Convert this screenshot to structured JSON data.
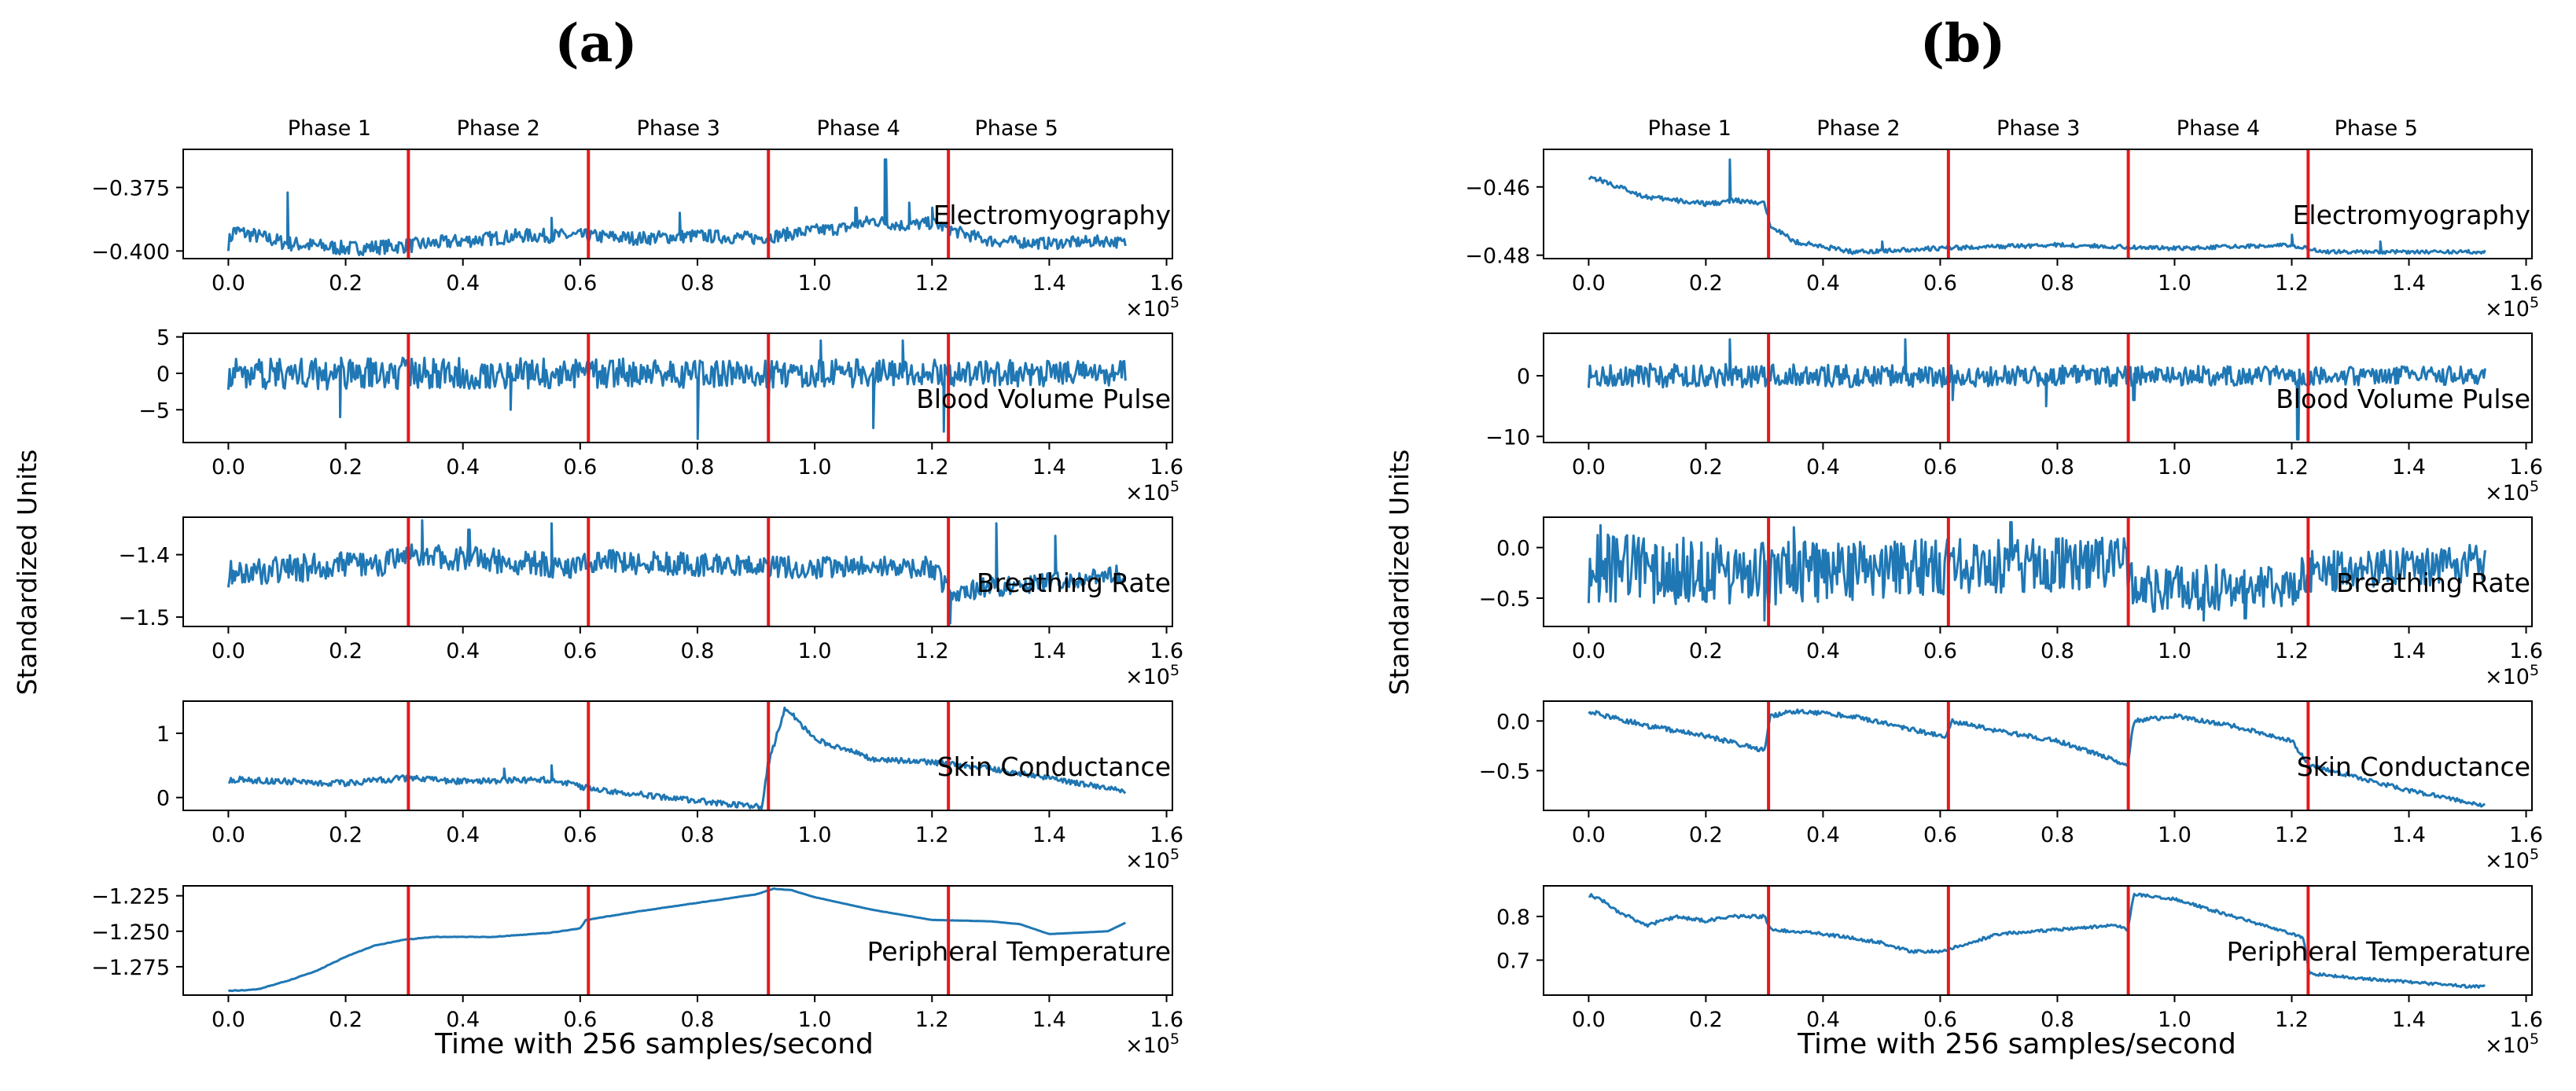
{
  "figure": {
    "line_color": "#1f77b4",
    "phase_line_color": "#e41a1c",
    "ylabel": "Standardized Units",
    "xlabel": "Time with 256 samples/second",
    "x_exponent_label": "×10",
    "x_exponent_power": "5"
  },
  "chart_data": [
    {
      "panel": "(a)",
      "type": "line",
      "phases": [
        "Phase 1",
        "Phase 2",
        "Phase 3",
        "Phase 4",
        "Phase 5"
      ],
      "phase_boundaries": [
        0.307,
        0.614,
        0.921,
        1.228
      ],
      "xlim": [
        -0.077,
        1.61
      ],
      "xticks": [
        0.0,
        0.2,
        0.4,
        0.6,
        0.8,
        1.0,
        1.2,
        1.4,
        1.6
      ],
      "xtick_labels": [
        "0.0",
        "0.2",
        "0.4",
        "0.6",
        "0.8",
        "1.0",
        "1.2",
        "1.4",
        "1.6"
      ],
      "subplots": [
        {
          "signal": "Electromyography",
          "ylim": [
            -0.403,
            -0.36
          ],
          "yticks": [
            -0.375,
            -0.4
          ],
          "ytick_labels": [
            "−0.375",
            "−0.400"
          ],
          "x": [
            0.0,
            0.01,
            0.1,
            0.2,
            0.3,
            0.4,
            0.5,
            0.6,
            0.7,
            0.8,
            0.9,
            1.0,
            1.05,
            1.1,
            1.15,
            1.2,
            1.25,
            1.3,
            1.4,
            1.5,
            1.53
          ],
          "values": [
            -0.397,
            -0.392,
            -0.397,
            -0.399,
            -0.398,
            -0.396,
            -0.394,
            -0.394,
            -0.395,
            -0.394,
            -0.395,
            -0.392,
            -0.391,
            -0.388,
            -0.39,
            -0.389,
            -0.393,
            -0.396,
            -0.397,
            -0.396,
            -0.397
          ],
          "spikes": [
            [
              0.01,
              -0.391
            ],
            [
              0.1,
              -0.377
            ],
            [
              0.55,
              -0.387
            ],
            [
              0.77,
              -0.385
            ],
            [
              1.07,
              -0.383
            ],
            [
              1.12,
              -0.364
            ],
            [
              1.16,
              -0.381
            ],
            [
              1.2,
              -0.383
            ]
          ],
          "noise": [
            0.006,
            0.0045
          ]
        },
        {
          "signal": "Blood Volume Pulse",
          "ylim": [
            -9.5,
            5.5
          ],
          "yticks": [
            5,
            0,
            -5
          ],
          "ytick_labels": [
            "5",
            "0",
            "−5"
          ],
          "x": [
            0.0,
            0.2,
            0.4,
            0.6,
            0.8,
            1.0,
            1.2,
            1.4,
            1.53
          ],
          "values": [
            0,
            0,
            0,
            0,
            0,
            0,
            0,
            0,
            0
          ],
          "spikes": [
            [
              0.19,
              -6
            ],
            [
              0.48,
              -5
            ],
            [
              0.8,
              -9
            ],
            [
              0.92,
              -8
            ],
            [
              1.1,
              -7.5
            ],
            [
              1.22,
              -8
            ],
            [
              1.01,
              4.5
            ],
            [
              1.15,
              4.5
            ],
            [
              1.55,
              2
            ]
          ],
          "noise": [
            4.5,
            3.5
          ]
        },
        {
          "signal": "Breathing Rate",
          "ylim": [
            -1.515,
            -1.34
          ],
          "yticks": [
            -1.4,
            -1.5
          ],
          "ytick_labels": [
            "−1.4",
            "−1.5"
          ],
          "x": [
            0.0,
            0.3,
            0.31,
            0.6,
            0.62,
            0.92,
            1.2,
            1.23,
            1.53
          ],
          "values": [
            -1.43,
            -1.41,
            -1.4,
            -1.42,
            -1.41,
            -1.42,
            -1.42,
            -1.46,
            -1.43
          ],
          "spikes": [
            [
              0.33,
              -1.345
            ],
            [
              0.55,
              -1.35
            ],
            [
              0.41,
              -1.36
            ],
            [
              1.23,
              -1.51
            ],
            [
              1.31,
              -1.35
            ],
            [
              1.41,
              -1.37
            ]
          ],
          "noise": [
            0.045,
            0.03
          ]
        },
        {
          "signal": "Skin Conductance",
          "ylim": [
            -0.2,
            1.5
          ],
          "yticks": [
            1,
            0
          ],
          "ytick_labels": [
            "1",
            "0"
          ],
          "x": [
            0.0,
            0.2,
            0.3,
            0.4,
            0.55,
            0.61,
            0.7,
            0.8,
            0.91,
            0.92,
            0.95,
            1.0,
            1.1,
            1.2,
            1.3,
            1.4,
            1.53
          ],
          "values": [
            0.28,
            0.22,
            0.3,
            0.25,
            0.28,
            0.15,
            0.05,
            -0.05,
            -0.15,
            0.5,
            1.4,
            0.9,
            0.6,
            0.55,
            0.45,
            0.3,
            0.1
          ],
          "spikes": [
            [
              0.47,
              0.45
            ],
            [
              0.55,
              0.5
            ]
          ],
          "noise": [
            0.1,
            0.08
          ]
        },
        {
          "signal": "Peripheral Temperature",
          "ylim": [
            -1.295,
            -1.218
          ],
          "yticks": [
            -1.225,
            -1.25,
            -1.275
          ],
          "ytick_labels": [
            "−1.225",
            "−1.250",
            "−1.275"
          ],
          "x": [
            0.0,
            0.05,
            0.1,
            0.15,
            0.2,
            0.25,
            0.3,
            0.35,
            0.45,
            0.55,
            0.6,
            0.61,
            0.7,
            0.8,
            0.9,
            0.93,
            0.96,
            1.0,
            1.1,
            1.2,
            1.3,
            1.35,
            1.4,
            1.5,
            1.53
          ],
          "values": [
            -1.292,
            -1.291,
            -1.285,
            -1.278,
            -1.268,
            -1.26,
            -1.256,
            -1.254,
            -1.254,
            -1.251,
            -1.248,
            -1.242,
            -1.236,
            -1.23,
            -1.224,
            -1.22,
            -1.221,
            -1.226,
            -1.235,
            -1.242,
            -1.243,
            -1.245,
            -1.252,
            -1.25,
            -1.244
          ],
          "spikes": [],
          "noise": [
            0.0005,
            0
          ]
        }
      ]
    },
    {
      "panel": "(b)",
      "type": "line",
      "phases": [
        "Phase 1",
        "Phase 2",
        "Phase 3",
        "Phase 4",
        "Phase 5"
      ],
      "phase_boundaries": [
        0.307,
        0.614,
        0.921,
        1.228
      ],
      "xlim": [
        -0.077,
        1.61
      ],
      "xticks": [
        0.0,
        0.2,
        0.4,
        0.6,
        0.8,
        1.0,
        1.2,
        1.4,
        1.6
      ],
      "xtick_labels": [
        "0.0",
        "0.2",
        "0.4",
        "0.6",
        "0.8",
        "1.0",
        "1.2",
        "1.4",
        "1.6"
      ],
      "subplots": [
        {
          "signal": "Electromyography",
          "ylim": [
            -0.481,
            -0.449
          ],
          "yticks": [
            -0.46,
            -0.48
          ],
          "ytick_labels": [
            "−0.46",
            "−0.48"
          ],
          "x": [
            0.0,
            0.02,
            0.05,
            0.1,
            0.15,
            0.2,
            0.25,
            0.3,
            0.31,
            0.35,
            0.45,
            0.6,
            0.8,
            1.0,
            1.2,
            1.25,
            1.4,
            1.53
          ],
          "values": [
            -0.457,
            -0.458,
            -0.46,
            -0.463,
            -0.464,
            -0.465,
            -0.464,
            -0.465,
            -0.471,
            -0.476,
            -0.479,
            -0.478,
            -0.477,
            -0.478,
            -0.477,
            -0.479,
            -0.479,
            -0.479
          ],
          "spikes": [
            [
              0.24,
              -0.452
            ],
            [
              0.5,
              -0.476
            ],
            [
              1.2,
              -0.474
            ],
            [
              1.35,
              -0.476
            ]
          ],
          "noise": [
            0.0015,
            0.001
          ]
        },
        {
          "signal": "Blood Volume Pulse",
          "ylim": [
            -11,
            7
          ],
          "yticks": [
            0,
            -10
          ],
          "ytick_labels": [
            "0",
            "−10"
          ],
          "x": [
            0.0,
            0.2,
            0.4,
            0.6,
            0.8,
            1.0,
            1.2,
            1.4,
            1.53
          ],
          "values": [
            0,
            0,
            0,
            0,
            0,
            0,
            0,
            0,
            0
          ],
          "spikes": [
            [
              0.24,
              6
            ],
            [
              0.54,
              6
            ],
            [
              1.21,
              -10.5
            ],
            [
              0.62,
              -4
            ],
            [
              0.78,
              -5
            ],
            [
              0.93,
              -4
            ]
          ],
          "noise": [
            4,
            3
          ]
        },
        {
          "signal": "Breathing Rate",
          "ylim": [
            -0.78,
            0.3
          ],
          "yticks": [
            0.0,
            -0.5
          ],
          "ytick_labels": [
            "0.0",
            "−0.5"
          ],
          "x": [
            0.0,
            0.3,
            0.31,
            0.6,
            0.62,
            0.92,
            0.93,
            1.2,
            1.23,
            1.53
          ],
          "values": [
            -0.2,
            -0.25,
            -0.25,
            -0.2,
            -0.2,
            -0.15,
            -0.4,
            -0.4,
            -0.25,
            -0.15
          ],
          "spikes": [
            [
              0.02,
              0.22
            ],
            [
              0.3,
              -0.72
            ],
            [
              0.35,
              0.2
            ],
            [
              0.72,
              0.25
            ],
            [
              1.05,
              -0.72
            ],
            [
              1.12,
              -0.7
            ]
          ],
          "noise": [
            0.7,
            0.35
          ]
        },
        {
          "signal": "Skin Conductance",
          "ylim": [
            -0.9,
            0.2
          ],
          "yticks": [
            0.0,
            -0.5
          ],
          "ytick_labels": [
            "0.0",
            "−0.5"
          ],
          "x": [
            0.0,
            0.03,
            0.1,
            0.2,
            0.3,
            0.31,
            0.35,
            0.45,
            0.6,
            0.61,
            0.62,
            0.7,
            0.8,
            0.9,
            0.92,
            0.93,
            1.0,
            1.1,
            1.2,
            1.23,
            1.3,
            1.4,
            1.53
          ],
          "values": [
            0.1,
            0.05,
            -0.05,
            -0.15,
            -0.3,
            0.05,
            0.1,
            0.05,
            -0.15,
            -0.15,
            0.0,
            -0.1,
            -0.2,
            -0.4,
            -0.45,
            0.0,
            0.05,
            -0.05,
            -0.2,
            -0.45,
            -0.55,
            -0.7,
            -0.85
          ],
          "spikes": [],
          "noise": [
            0.05,
            0.04
          ]
        },
        {
          "signal": "Peripheral Temperature",
          "ylim": [
            0.62,
            0.87
          ],
          "yticks": [
            0.8,
            0.7
          ],
          "ytick_labels": [
            "0.8",
            "0.7"
          ],
          "x": [
            0.0,
            0.02,
            0.05,
            0.1,
            0.15,
            0.2,
            0.25,
            0.3,
            0.31,
            0.4,
            0.5,
            0.55,
            0.6,
            0.65,
            0.7,
            0.8,
            0.9,
            0.92,
            0.93,
            1.0,
            1.1,
            1.2,
            1.22,
            1.23,
            1.3,
            1.4,
            1.5,
            1.53
          ],
          "values": [
            0.85,
            0.84,
            0.81,
            0.78,
            0.8,
            0.79,
            0.8,
            0.8,
            0.77,
            0.76,
            0.74,
            0.72,
            0.72,
            0.74,
            0.76,
            0.77,
            0.78,
            0.77,
            0.85,
            0.84,
            0.8,
            0.76,
            0.75,
            0.67,
            0.66,
            0.65,
            0.64,
            0.64
          ],
          "spikes": [],
          "noise": [
            0.008,
            0.006
          ]
        }
      ]
    }
  ]
}
